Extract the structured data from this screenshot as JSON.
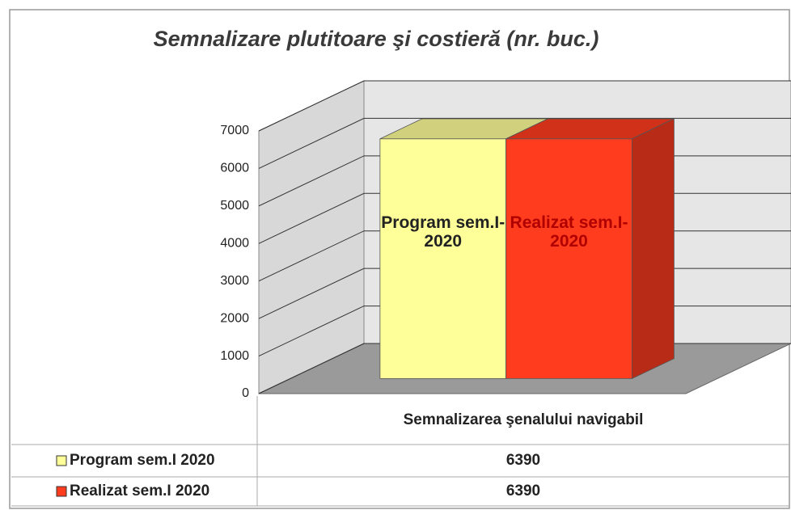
{
  "chart_data": {
    "type": "bar3d",
    "title": "Semnalizare plutitoare şi costieră  (nr. buc.)",
    "categories": [
      "Semnalizarea şenalului navigabil"
    ],
    "series": [
      {
        "name": "Program sem.I 2020",
        "label": "Program sem.I-2020",
        "color": "#ffff99",
        "values": [
          6390
        ]
      },
      {
        "name": "Realizat sem.I 2020",
        "label": "Realizat sem.I-2020",
        "color": "#ff3c1e",
        "values": [
          6390
        ]
      }
    ],
    "ylim": [
      0,
      7000
    ],
    "yticks": [
      0,
      1000,
      2000,
      3000,
      4000,
      5000,
      6000,
      7000
    ],
    "grid": true
  }
}
